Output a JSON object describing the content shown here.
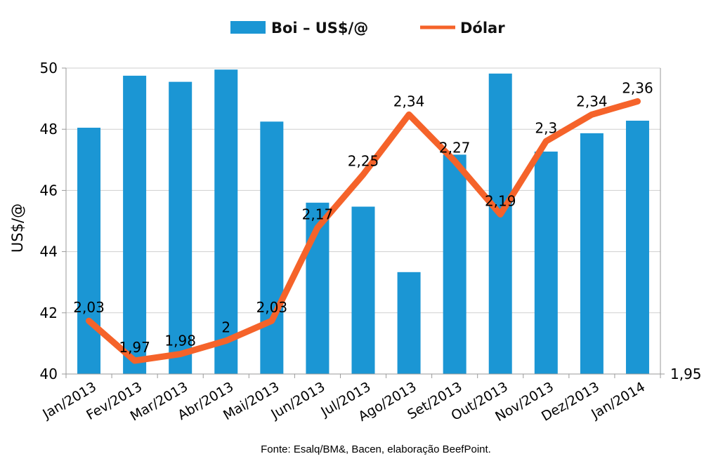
{
  "chart_data": {
    "type": "bar",
    "categories": [
      "Jan/2013",
      "Fev/2013",
      "Mar/2013",
      "Abr/2013",
      "Mai/2013",
      "Jun/2013",
      "Jul/2013",
      "Ago/2013",
      "Set/2013",
      "Out/2013",
      "Nov/2013",
      "Dez/2013",
      "Jan/2014"
    ],
    "series": [
      {
        "name": "Boi – US$/@",
        "type": "bar",
        "axis": "left",
        "color": "#1b96d4",
        "values": [
          48.05,
          49.75,
          49.55,
          49.95,
          48.25,
          45.6,
          45.47,
          43.33,
          47.17,
          49.82,
          47.27,
          47.87,
          48.28
        ]
      },
      {
        "name": "Dólar",
        "type": "line",
        "axis": "right",
        "color": "#f5632a",
        "values": [
          2.03,
          1.97,
          1.98,
          2,
          2.03,
          2.17,
          2.25,
          2.34,
          2.27,
          2.19,
          2.3,
          2.34,
          2.36
        ],
        "labels": [
          "2,03",
          "1,97",
          "1,98",
          "2",
          "2,03",
          "2,17",
          "2,25",
          "2,34",
          "2,27",
          "2,19",
          "2,3",
          "2,34",
          "2,36"
        ]
      }
    ],
    "title": "",
    "xlabel": "",
    "ylabel": "US$/@",
    "ylim": [
      40,
      50
    ],
    "yticks": [
      40,
      42,
      44,
      46,
      48,
      50
    ],
    "ytick_labels": [
      "40",
      "42",
      "44",
      "46",
      "48",
      "50"
    ],
    "y2lim": [
      1.95,
      2.41
    ],
    "y2ticks": [
      1.95
    ],
    "y2tick_labels": [
      "1,95"
    ],
    "grid": "horizontal",
    "legend": "top-center"
  },
  "legend": {
    "bar_label": "Boi – US$/@",
    "line_label": "Dólar"
  },
  "source": "Fonte: Esalq/BM&, Bacen, elaboração BeefPoint."
}
